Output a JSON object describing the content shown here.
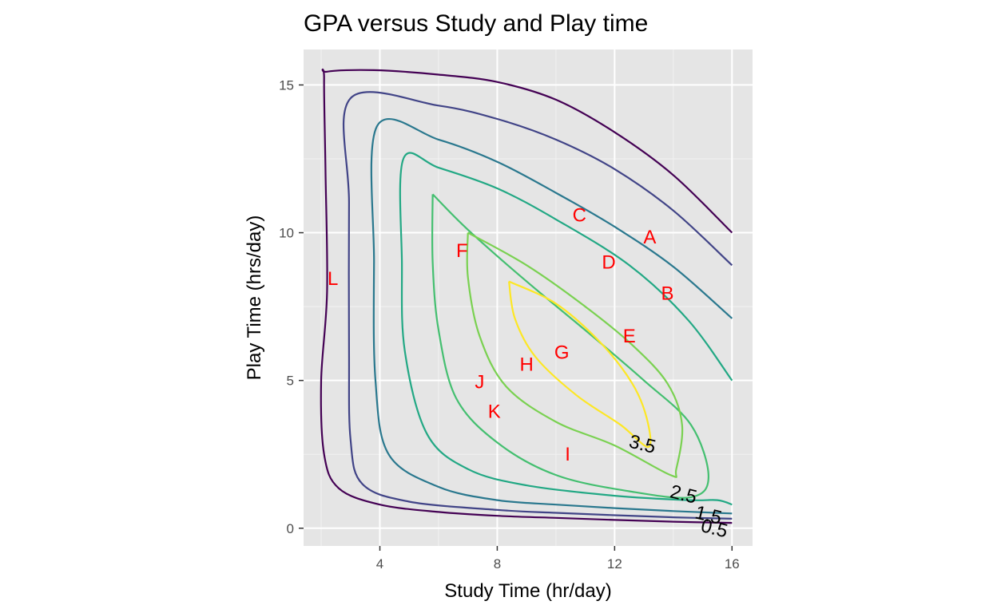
{
  "chart_data": {
    "type": "contour",
    "title": "GPA versus Study and Play time",
    "xlabel": "Study Time (hr/day)",
    "ylabel": "Play Time (hrs/day)",
    "xlim": [
      1.4,
      16.7
    ],
    "ylim": [
      -0.6,
      16.2
    ],
    "x_ticks": [
      4,
      8,
      12,
      16
    ],
    "y_ticks": [
      0,
      5,
      10,
      15
    ],
    "x_tick_labels": [
      "4",
      "8",
      "12",
      "16"
    ],
    "y_tick_labels": [
      "0",
      "5",
      "10",
      "15"
    ],
    "grid": true,
    "background": "#e5e5e5",
    "label_color": "#ff0000",
    "levels": [
      {
        "level": 0.5,
        "color": "#440154",
        "points": [
          [
            16.0,
            10.0
          ],
          [
            14.0,
            11.95
          ],
          [
            12.0,
            13.4
          ],
          [
            10.0,
            14.5
          ],
          [
            8.0,
            15.1
          ],
          [
            6.0,
            15.35
          ],
          [
            3.8,
            15.5
          ],
          [
            2.2,
            15.45
          ],
          [
            2.1,
            15.2
          ],
          [
            2.15,
            12.0
          ],
          [
            2.2,
            8.0
          ],
          [
            2.0,
            5.0
          ],
          [
            2.1,
            2.5
          ],
          [
            2.6,
            1.35
          ],
          [
            4.0,
            0.8
          ],
          [
            6.0,
            0.55
          ],
          [
            8.0,
            0.42
          ],
          [
            10.0,
            0.35
          ],
          [
            12.0,
            0.28
          ],
          [
            14.0,
            0.22
          ],
          [
            16.0,
            0.18
          ]
        ]
      },
      {
        "level": 1.0,
        "color": "#414487",
        "points": [
          [
            16.0,
            8.9
          ],
          [
            14.0,
            10.75
          ],
          [
            12.0,
            12.15
          ],
          [
            10.0,
            13.15
          ],
          [
            8.0,
            13.85
          ],
          [
            6.0,
            14.3
          ],
          [
            3.0,
            14.55
          ],
          [
            2.95,
            11.0
          ],
          [
            2.95,
            6.0
          ],
          [
            3.0,
            3.0
          ],
          [
            3.4,
            1.5
          ],
          [
            5.0,
            0.9
          ],
          [
            8.0,
            0.62
          ],
          [
            10.0,
            0.52
          ],
          [
            12.0,
            0.44
          ],
          [
            14.0,
            0.37
          ],
          [
            16.0,
            0.32
          ]
        ]
      },
      {
        "level": 1.5,
        "color": "#2a788e",
        "points": [
          [
            16.0,
            7.1
          ],
          [
            14.0,
            8.85
          ],
          [
            12.0,
            10.2
          ],
          [
            10.0,
            11.35
          ],
          [
            8.0,
            12.4
          ],
          [
            6.0,
            13.15
          ],
          [
            3.9,
            13.6
          ],
          [
            3.8,
            9.0
          ],
          [
            3.85,
            5.0
          ],
          [
            4.3,
            2.5
          ],
          [
            6.0,
            1.4
          ],
          [
            8.0,
            0.95
          ],
          [
            10.0,
            0.8
          ],
          [
            12.0,
            0.68
          ],
          [
            14.0,
            0.58
          ],
          [
            16.0,
            0.5
          ]
        ]
      },
      {
        "level": 2.0,
        "color": "#22a884",
        "points": [
          [
            16.0,
            5.0
          ],
          [
            14.5,
            7.05
          ],
          [
            12.5,
            8.9
          ],
          [
            10.0,
            10.45
          ],
          [
            8.0,
            11.5
          ],
          [
            6.0,
            12.2
          ],
          [
            4.8,
            12.5
          ],
          [
            4.75,
            9.0
          ],
          [
            4.85,
            6.0
          ],
          [
            5.6,
            3.2
          ],
          [
            7.0,
            2.0
          ],
          [
            9.0,
            1.45
          ],
          [
            12.0,
            1.1
          ],
          [
            14.5,
            0.95
          ],
          [
            15.5,
            0.95
          ],
          [
            16.0,
            0.8
          ]
        ]
      },
      {
        "level": 2.5,
        "color": "#44bf70",
        "points": [
          [
            5.8,
            11.3
          ],
          [
            7.0,
            10.1
          ],
          [
            9.0,
            8.35
          ],
          [
            11.0,
            6.7
          ],
          [
            13.0,
            5.0
          ],
          [
            14.6,
            3.5
          ],
          [
            15.2,
            1.75
          ],
          [
            14.6,
            1.05
          ],
          [
            12.5,
            1.25
          ],
          [
            10.0,
            1.8
          ],
          [
            8.0,
            2.9
          ],
          [
            6.6,
            4.4
          ],
          [
            6.0,
            6.7
          ],
          [
            5.8,
            9.0
          ],
          [
            5.8,
            11.3
          ]
        ]
      },
      {
        "level": 3.0,
        "color": "#7ad151",
        "points": [
          [
            7.0,
            10.0
          ],
          [
            9.0,
            8.9
          ],
          [
            11.0,
            7.5
          ],
          [
            12.6,
            6.2
          ],
          [
            13.8,
            4.9
          ],
          [
            14.3,
            3.5
          ],
          [
            14.1,
            2.0
          ],
          [
            13.9,
            1.8
          ],
          [
            12.0,
            2.8
          ],
          [
            10.0,
            3.6
          ],
          [
            8.3,
            4.8
          ],
          [
            7.4,
            6.5
          ],
          [
            7.0,
            8.5
          ],
          [
            7.0,
            10.0
          ]
        ]
      },
      {
        "level": 3.5,
        "color": "#fde725",
        "points": [
          [
            8.4,
            8.35
          ],
          [
            10.0,
            7.6
          ],
          [
            11.5,
            6.3
          ],
          [
            12.6,
            4.9
          ],
          [
            13.1,
            3.7
          ],
          [
            13.15,
            2.75
          ],
          [
            12.2,
            3.5
          ],
          [
            10.7,
            4.5
          ],
          [
            9.3,
            5.8
          ],
          [
            8.6,
            7.1
          ],
          [
            8.4,
            8.35
          ]
        ]
      }
    ],
    "contour_labels": [
      {
        "text": "3.5",
        "x": 12.95,
        "y": 2.85
      },
      {
        "text": "2.5",
        "x": 14.35,
        "y": 1.15
      },
      {
        "text": "1.5",
        "x": 15.2,
        "y": 0.45
      },
      {
        "text": "0.5",
        "x": 15.4,
        "y": 0.0
      }
    ],
    "points": [
      {
        "label": "A",
        "x": 13.2,
        "y": 9.85
      },
      {
        "label": "B",
        "x": 13.8,
        "y": 7.95
      },
      {
        "label": "C",
        "x": 10.8,
        "y": 10.6
      },
      {
        "label": "D",
        "x": 11.8,
        "y": 9.0
      },
      {
        "label": "E",
        "x": 12.5,
        "y": 6.5
      },
      {
        "label": "F",
        "x": 6.8,
        "y": 9.4
      },
      {
        "label": "G",
        "x": 10.2,
        "y": 5.95
      },
      {
        "label": "H",
        "x": 9.0,
        "y": 5.55
      },
      {
        "label": "I",
        "x": 10.4,
        "y": 2.5
      },
      {
        "label": "J",
        "x": 7.4,
        "y": 4.95
      },
      {
        "label": "K",
        "x": 7.9,
        "y": 3.95
      },
      {
        "label": "L",
        "x": 2.4,
        "y": 8.45
      }
    ]
  }
}
